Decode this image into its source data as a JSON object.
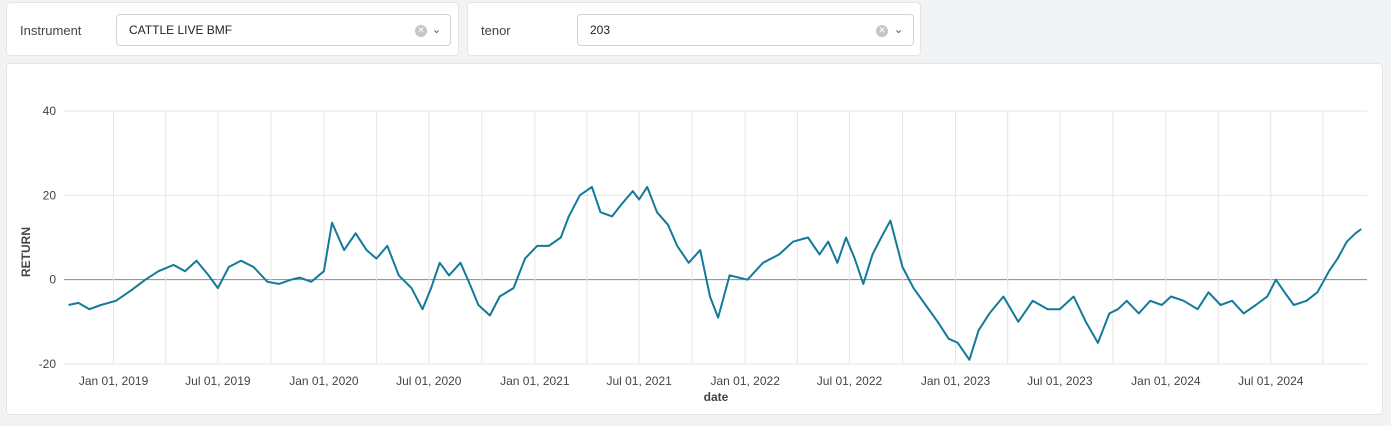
{
  "controls": {
    "instrument": {
      "label": "Instrument",
      "value": "CATTLE LIVE BMF"
    },
    "tenor": {
      "label": "tenor",
      "value": "203"
    }
  },
  "icons": {
    "clear": "clear-circle-x-icon",
    "dropdown": "chevron-down-icon"
  },
  "colors": {
    "line": "#137a99",
    "grid": "#e6e6e6",
    "zero": "#888888"
  },
  "chart_data": {
    "type": "line",
    "title": "",
    "xlabel": "date",
    "ylabel": "RETURN",
    "ylim": [
      -20,
      40
    ],
    "yticks": [
      -20,
      0,
      20,
      40
    ],
    "xlim": [
      "2018-10-07",
      "2024-12-15"
    ],
    "xticks": [
      "Jan 01, 2019",
      "Jul 01, 2019",
      "Jan 01, 2020",
      "Jul 01, 2020",
      "Jan 01, 2021",
      "Jul 01, 2021",
      "Jan 01, 2022",
      "Jul 01, 2022",
      "Jan 01, 2023",
      "Jul 01, 2023",
      "Jan 01, 2024",
      "Jul 01, 2024"
    ],
    "xtick_dates": [
      "2019-01-01",
      "2019-07-01",
      "2020-01-01",
      "2020-07-01",
      "2021-01-01",
      "2021-07-01",
      "2022-01-01",
      "2022-07-01",
      "2023-01-01",
      "2023-07-01",
      "2024-01-01",
      "2024-07-01"
    ],
    "grid": true,
    "series": [
      {
        "x": [
          "2018-10-15",
          "2018-11-01",
          "2018-11-20",
          "2018-12-10",
          "2019-01-05",
          "2019-02-01",
          "2019-02-25",
          "2019-03-20",
          "2019-04-15",
          "2019-05-05",
          "2019-05-25",
          "2019-06-15",
          "2019-07-01",
          "2019-07-20",
          "2019-08-10",
          "2019-09-01",
          "2019-09-25",
          "2019-10-15",
          "2019-11-05",
          "2019-11-20",
          "2019-12-10",
          "2020-01-01",
          "2020-01-15",
          "2020-02-05",
          "2020-02-25",
          "2020-03-15",
          "2020-04-01",
          "2020-04-20",
          "2020-05-10",
          "2020-06-01",
          "2020-06-20",
          "2020-07-05",
          "2020-07-20",
          "2020-08-05",
          "2020-08-25",
          "2020-09-10",
          "2020-09-25",
          "2020-10-15",
          "2020-11-01",
          "2020-11-25",
          "2020-12-15",
          "2021-01-05",
          "2021-01-25",
          "2021-02-15",
          "2021-03-01",
          "2021-03-20",
          "2021-04-10",
          "2021-04-25",
          "2021-05-15",
          "2021-06-01",
          "2021-06-20",
          "2021-07-01",
          "2021-07-15",
          "2021-08-01",
          "2021-08-20",
          "2021-09-05",
          "2021-09-25",
          "2021-10-15",
          "2021-11-01",
          "2021-11-15",
          "2021-12-05",
          "2022-01-05",
          "2022-02-01",
          "2022-03-01",
          "2022-03-25",
          "2022-04-20",
          "2022-05-10",
          "2022-05-25",
          "2022-06-10",
          "2022-06-25",
          "2022-07-10",
          "2022-07-25",
          "2022-08-10",
          "2022-08-25",
          "2022-09-10",
          "2022-10-01",
          "2022-10-20",
          "2022-11-10",
          "2022-12-01",
          "2022-12-20",
          "2023-01-05",
          "2023-01-25",
          "2023-02-10",
          "2023-03-01",
          "2023-03-25",
          "2023-04-20",
          "2023-05-15",
          "2023-06-10",
          "2023-07-01",
          "2023-07-25",
          "2023-08-15",
          "2023-09-05",
          "2023-09-25",
          "2023-10-10",
          "2023-10-25",
          "2023-11-15",
          "2023-12-05",
          "2023-12-25",
          "2024-01-10",
          "2024-02-01",
          "2024-02-25",
          "2024-03-15",
          "2024-04-05",
          "2024-04-25",
          "2024-05-15",
          "2024-06-05",
          "2024-06-25",
          "2024-07-10",
          "2024-07-25",
          "2024-08-10",
          "2024-09-01",
          "2024-09-20",
          "2024-10-10",
          "2024-10-25",
          "2024-11-10",
          "2024-11-25",
          "2024-12-05"
        ],
        "y": [
          -6,
          -5.5,
          -7,
          -6,
          -5,
          -2.5,
          0,
          2,
          3.5,
          2,
          4.5,
          1,
          -2,
          3,
          4.5,
          3,
          -0.5,
          -1,
          0,
          0.5,
          -0.5,
          2,
          13.5,
          7,
          11,
          7,
          5,
          8,
          1,
          -2,
          -7,
          -2,
          4,
          1,
          4,
          -1,
          -6,
          -8.5,
          -4,
          -2,
          5,
          8,
          8,
          10,
          15,
          20,
          22,
          16,
          15,
          18,
          21,
          19,
          22,
          16,
          13,
          8,
          4,
          7,
          -4,
          -9,
          1,
          0,
          4,
          6,
          9,
          10,
          6,
          9,
          4,
          10,
          5,
          -1,
          6,
          10,
          14,
          3,
          -2,
          -6,
          -10,
          -14,
          -15,
          -19,
          -12,
          -8,
          -4,
          -10,
          -5,
          -7,
          -7,
          -4,
          -10,
          -15,
          -8,
          -7,
          -5,
          -8,
          -5,
          -6,
          -4,
          -5,
          -7,
          -3,
          -6,
          -5,
          -8,
          -6,
          -4,
          0,
          -3,
          -6,
          -5,
          -3,
          2,
          5,
          9,
          11,
          12
        ]
      }
    ]
  }
}
